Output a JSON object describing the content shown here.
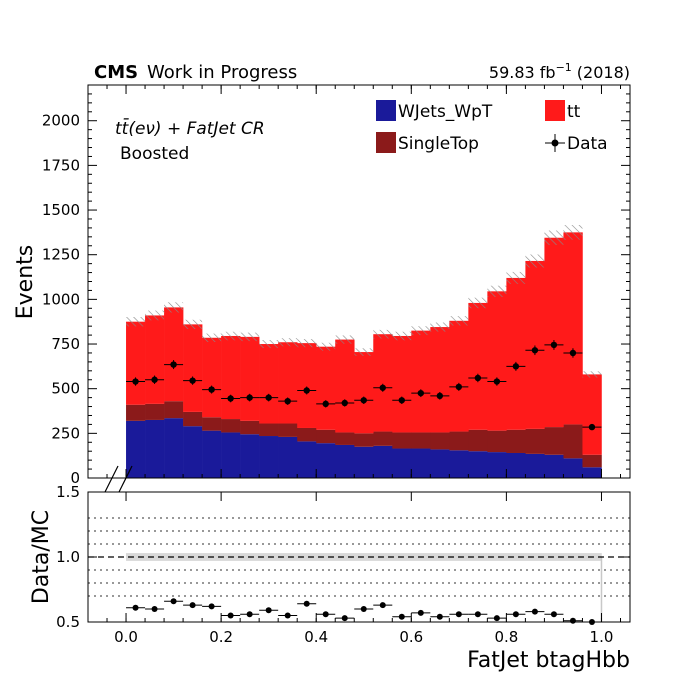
{
  "chart_data": {
    "type": "bar",
    "stacked": true,
    "header": {
      "experiment": "CMS",
      "status": "Work in Progress",
      "lumi_value": "59.83 fb",
      "lumi_exponent": "−1",
      "lumi_year": "(2018)"
    },
    "region": {
      "process_line": "tt̄(eν) + FatJet CR",
      "selection_line": "Boosted"
    },
    "xlabel": "FatJet btagHbb",
    "ylabel": "Events",
    "ratio_ylabel": "Data/MC",
    "xlim": [
      -0.08,
      1.06
    ],
    "ylim": [
      0,
      2200
    ],
    "ratio_ylim": [
      0.5,
      1.5
    ],
    "x_ticks": [
      "0.0",
      "0.2",
      "0.4",
      "0.6",
      "0.8",
      "1.0"
    ],
    "y_ticks": [
      "0",
      "250",
      "500",
      "750",
      "1000",
      "1250",
      "1500",
      "1750",
      "2000"
    ],
    "ratio_y_ticks": [
      "0.5",
      "1.0",
      "1.5"
    ],
    "ratio_dotted_lines": [
      0.7,
      0.8,
      0.9,
      1.1,
      1.2,
      1.3
    ],
    "bins": {
      "start": 0.0,
      "width": 0.04,
      "count": 25
    },
    "legend": {
      "placement": "top-right",
      "entries": [
        {
          "label": "WJets_WpT",
          "kind": "fill",
          "color": "#1a1a9a"
        },
        {
          "label": "tt",
          "kind": "fill",
          "color": "#ff1a1a"
        },
        {
          "label": "SingleTop",
          "kind": "fill",
          "color": "#8b1a1a"
        },
        {
          "label": "Data",
          "kind": "marker",
          "color": "#000000"
        }
      ]
    },
    "series": [
      {
        "name": "WJets_WpT",
        "color": "#1a1a9a",
        "values": [
          320,
          325,
          335,
          290,
          265,
          255,
          245,
          235,
          230,
          205,
          195,
          185,
          175,
          180,
          165,
          165,
          160,
          155,
          150,
          145,
          140,
          135,
          130,
          110,
          60
        ]
      },
      {
        "name": "SingleTop",
        "color": "#8b1a1a",
        "values": [
          90,
          90,
          95,
          80,
          75,
          75,
          75,
          70,
          75,
          75,
          75,
          70,
          75,
          80,
          90,
          90,
          95,
          105,
          120,
          120,
          130,
          140,
          155,
          190,
          70
        ]
      },
      {
        "name": "tt",
        "color": "#ff1a1a",
        "values": [
          465,
          495,
          525,
          490,
          445,
          465,
          470,
          445,
          455,
          475,
          465,
          520,
          455,
          545,
          540,
          570,
          590,
          620,
          710,
          780,
          850,
          940,
          1060,
          1075,
          450
        ]
      }
    ],
    "data": {
      "name": "Data",
      "values": [
        540,
        550,
        635,
        545,
        495,
        445,
        450,
        450,
        430,
        490,
        415,
        420,
        435,
        505,
        435,
        475,
        460,
        510,
        560,
        540,
        625,
        715,
        745,
        700,
        285
      ]
    },
    "ratio_values": [
      0.61,
      0.6,
      0.66,
      0.63,
      0.62,
      0.55,
      0.56,
      0.59,
      0.55,
      0.64,
      0.56,
      0.53,
      0.6,
      0.63,
      0.54,
      0.57,
      0.54,
      0.56,
      0.56,
      0.53,
      0.56,
      0.58,
      0.56,
      0.51,
      0.5
    ]
  }
}
